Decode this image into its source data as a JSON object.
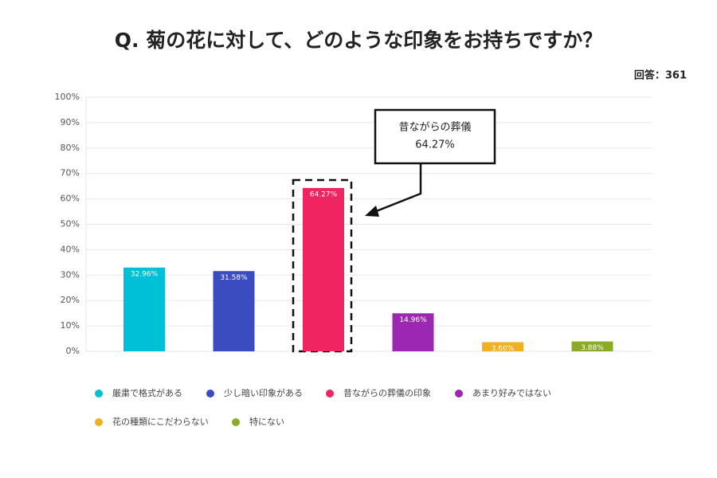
{
  "chart_data": {
    "type": "bar",
    "title": "Q. 菊の花に対して、どのような印象をお持ちですか？",
    "subtitle": "回答：361",
    "categories": [
      "厳粛で格式がある",
      "少し暗い印象がある",
      "昔ながらの葬儀の印象",
      "あまり好みではない",
      "花の種類にこだわらない",
      "特にない"
    ],
    "values": [
      32.96,
      31.58,
      64.27,
      14.96,
      3.6,
      3.88
    ],
    "value_labels": [
      "32.96%",
      "31.58%",
      "64.27%",
      "14.96%",
      "3.60%",
      "3.88%"
    ],
    "colors": [
      "#00c0d8",
      "#3b4cc0",
      "#f0245e",
      "#9c27b0",
      "#f0b020",
      "#8bab27"
    ],
    "ylim": [
      0,
      100
    ],
    "yticks": [
      {
        "value": 0,
        "label": "0%"
      },
      {
        "value": 10,
        "label": "10%"
      },
      {
        "value": 20,
        "label": "20%"
      },
      {
        "value": 30,
        "label": "30%"
      },
      {
        "value": 40,
        "label": "40%"
      },
      {
        "value": 50,
        "label": "50%"
      },
      {
        "value": 60,
        "label": "60%"
      },
      {
        "value": 70,
        "label": "70%"
      },
      {
        "value": 80,
        "label": "80%"
      },
      {
        "value": 90,
        "label": "90%"
      },
      {
        "value": 100,
        "label": "100%"
      }
    ],
    "grid": true,
    "legend": "bottom",
    "annotation": {
      "lines": [
        "昔ながらの葬儀",
        "64.27%"
      ]
    }
  }
}
